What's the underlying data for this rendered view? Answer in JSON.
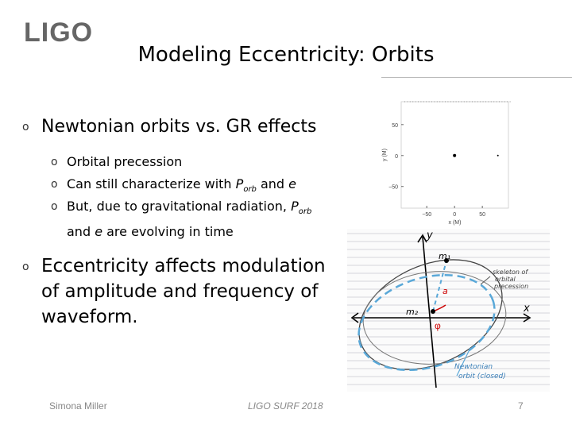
{
  "header": {
    "logo": "LIGO",
    "title": "Modeling Eccentricity: Orbits"
  },
  "bullets": [
    {
      "text": "Newtonian orbits vs. GR effects",
      "sub": [
        [
          "Orbital precession"
        ],
        [
          "Can still characterize with ",
          "P",
          "orb",
          " and ",
          "e"
        ],
        [
          "But, due to gravitational radiation, ",
          "P",
          "orb",
          " and ",
          "e",
          " are evolving in time"
        ]
      ]
    },
    {
      "text": "Eccentricity affects modulation of amplitude and frequency of waveform."
    }
  ],
  "plot": {
    "xlabel": "x (M)",
    "ylabel": "y (M)",
    "xlim": [
      -96,
      97
    ],
    "ylim": [
      -85,
      87
    ],
    "xticks": [
      {
        "value": -50,
        "label": "−50"
      },
      0,
      50
    ],
    "yticks": [
      50,
      0,
      {
        "value": -50,
        "label": "−50"
      }
    ],
    "points": {
      "x": [
        0,
        78
      ],
      "y": [
        0,
        0
      ]
    }
  },
  "sketch": {
    "y_axis": "y",
    "x_axis": "x",
    "m1": "m₁",
    "m2": "m₂",
    "a": "a",
    "phi": "φ",
    "precession": [
      "skeleton of",
      "orbital",
      "precession"
    ],
    "newtonian": [
      "Newtonian",
      "orbit (closed)"
    ]
  },
  "footer": {
    "author": "Simona Miller",
    "event": "LIGO SURF 2018",
    "page": "7"
  }
}
